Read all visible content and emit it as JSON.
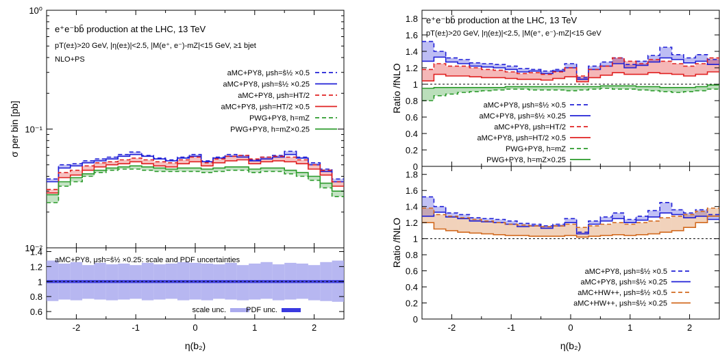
{
  "chart_data": [
    {
      "type": "line",
      "panel": "left-top",
      "title": "e⁺e⁻bb̄ production at the LHC, 13 TeV",
      "cuts": "p_T(e±)>20 GeV, |η(e±)|<2.5, |M(e⁺, e⁻)-m_Z|<15 GeV, ≥1 bjet",
      "subtitle": "NLO+PS",
      "xlabel": "η(b₂)",
      "ylabel": "σ per bin [pb]",
      "xlim": [
        -2.5,
        2.5
      ],
      "ylim": [
        0.01,
        1
      ],
      "yscale": "log",
      "x_ticks": [
        "-2",
        "-1",
        "0",
        "1",
        "2"
      ],
      "y_ticks": [
        "10⁰",
        "10⁻¹",
        "10⁻²"
      ],
      "bin_edges": [
        -2.5,
        -2.3,
        -2.1,
        -1.9,
        -1.7,
        -1.5,
        -1.3,
        -1.1,
        -0.9,
        -0.7,
        -0.5,
        -0.3,
        -0.1,
        0.1,
        0.3,
        0.5,
        0.7,
        0.9,
        1.1,
        1.3,
        1.5,
        1.7,
        1.9,
        2.1,
        2.3,
        2.5
      ],
      "series": [
        {
          "name": "aMC+PY8, μ_sh=ŝ^{1/2} ×0.5",
          "color": "#1f1fd6",
          "dash": "dashed",
          "values": [
            0.038,
            0.05,
            0.051,
            0.054,
            0.056,
            0.058,
            0.061,
            0.064,
            0.06,
            0.057,
            0.055,
            0.058,
            0.061,
            0.054,
            0.058,
            0.061,
            0.06,
            0.055,
            0.058,
            0.06,
            0.065,
            0.058,
            0.052,
            0.046,
            0.038
          ]
        },
        {
          "name": "aMC+PY8, μ_sh=ŝ^{1/2} ×0.25",
          "color": "#1f1fd6",
          "dash": "solid",
          "values": [
            0.036,
            0.047,
            0.049,
            0.052,
            0.054,
            0.056,
            0.059,
            0.061,
            0.059,
            0.056,
            0.054,
            0.057,
            0.059,
            0.053,
            0.057,
            0.059,
            0.058,
            0.054,
            0.056,
            0.058,
            0.061,
            0.057,
            0.05,
            0.044,
            0.036
          ]
        },
        {
          "name": "aMC+PY8, μ_sh=H_T/2",
          "color": "#e02020",
          "dash": "dashed",
          "values": [
            0.031,
            0.043,
            0.045,
            0.049,
            0.052,
            0.053,
            0.055,
            0.057,
            0.055,
            0.053,
            0.052,
            0.055,
            0.058,
            0.052,
            0.056,
            0.059,
            0.06,
            0.056,
            0.058,
            0.059,
            0.058,
            0.055,
            0.05,
            0.045,
            0.036
          ]
        },
        {
          "name": "aMC+PY8, μ_sh=H_T/2 ×0.5",
          "color": "#e02020",
          "dash": "solid",
          "values": [
            0.029,
            0.039,
            0.041,
            0.045,
            0.048,
            0.05,
            0.051,
            0.053,
            0.051,
            0.049,
            0.048,
            0.051,
            0.053,
            0.049,
            0.052,
            0.054,
            0.055,
            0.051,
            0.053,
            0.054,
            0.053,
            0.051,
            0.046,
            0.041,
            0.033
          ]
        },
        {
          "name": "PWG+PY8, h=m_Z",
          "color": "#2a9a2a",
          "dash": "dashed",
          "values": [
            0.024,
            0.033,
            0.036,
            0.04,
            0.043,
            0.045,
            0.046,
            0.046,
            0.045,
            0.044,
            0.044,
            0.044,
            0.044,
            0.043,
            0.044,
            0.045,
            0.045,
            0.043,
            0.044,
            0.044,
            0.042,
            0.04,
            0.037,
            0.032,
            0.027
          ]
        },
        {
          "name": "PWG+PY8, h=m_Z×0.25",
          "color": "#2a9a2a",
          "dash": "solid",
          "values": [
            0.028,
            0.036,
            0.039,
            0.042,
            0.045,
            0.047,
            0.048,
            0.049,
            0.048,
            0.047,
            0.046,
            0.047,
            0.047,
            0.046,
            0.047,
            0.048,
            0.048,
            0.046,
            0.047,
            0.047,
            0.045,
            0.043,
            0.04,
            0.035,
            0.03
          ]
        }
      ]
    },
    {
      "type": "area",
      "panel": "left-bottom",
      "title": "aMC+PY8, μ_sh=ŝ^{1/2} ×0.25: scale and PDF uncertainties",
      "xlabel": "η(b₂)",
      "xlim": [
        -2.5,
        2.5
      ],
      "ylim": [
        0.5,
        1.45
      ],
      "y_ticks": [
        "1.4",
        "1.2",
        "1",
        "0.8",
        "0.6"
      ],
      "x_ticks": [
        "-2",
        "-1",
        "0",
        "1",
        "2"
      ],
      "bands": [
        {
          "name": "scale unc.",
          "color": "#aaaaee",
          "upper": [
            1.28,
            1.24,
            1.26,
            1.22,
            1.25,
            1.23,
            1.24,
            1.22,
            1.25,
            1.23,
            1.24,
            1.26,
            1.25,
            1.24,
            1.23,
            1.25,
            1.22,
            1.24,
            1.26,
            1.23,
            1.25,
            1.24,
            1.22,
            1.26,
            1.28
          ],
          "lower": [
            0.74,
            0.76,
            0.75,
            0.77,
            0.76,
            0.75,
            0.76,
            0.77,
            0.75,
            0.76,
            0.77,
            0.75,
            0.76,
            0.75,
            0.77,
            0.76,
            0.75,
            0.76,
            0.77,
            0.75,
            0.76,
            0.77,
            0.75,
            0.74,
            0.73
          ]
        },
        {
          "name": "PDF unc.",
          "color": "#3a3ae0",
          "upper": [
            1.02,
            1.02,
            1.02,
            1.02,
            1.02,
            1.02,
            1.02,
            1.02,
            1.02,
            1.02,
            1.02,
            1.02,
            1.02,
            1.02,
            1.02,
            1.02,
            1.02,
            1.02,
            1.02,
            1.02,
            1.02,
            1.02,
            1.02,
            1.02,
            1.02
          ],
          "lower": [
            0.98,
            0.98,
            0.98,
            0.98,
            0.98,
            0.98,
            0.98,
            0.98,
            0.98,
            0.98,
            0.98,
            0.98,
            0.98,
            0.98,
            0.98,
            0.98,
            0.98,
            0.98,
            0.98,
            0.98,
            0.98,
            0.98,
            0.98,
            0.98,
            0.98
          ]
        }
      ]
    },
    {
      "type": "line",
      "panel": "right-top",
      "title": "e⁺e⁻bb̄ production at the LHC, 13 TeV",
      "cuts": "p_T(e±)>20 GeV, |η(e±)|<2.5, |M(e⁺, e⁻)-m_Z|<15 GeV",
      "ylabel": "Ratio /fNLO",
      "xlim": [
        -2.5,
        2.5
      ],
      "ylim": [
        0,
        1.9
      ],
      "y_ticks": [
        "1.8",
        "1.6",
        "1.4",
        "1.2",
        "1",
        "0.8",
        "0.6",
        "0.4",
        "0.2",
        "0"
      ],
      "series": [
        {
          "name": "aMC+PY8, μ_sh=ŝ^{1/2} ×0.5",
          "color": "#1f1fd6",
          "dash": "dashed",
          "values": [
            1.52,
            1.4,
            1.32,
            1.3,
            1.26,
            1.25,
            1.24,
            1.22,
            1.19,
            1.18,
            1.16,
            1.18,
            1.25,
            1.08,
            1.22,
            1.27,
            1.32,
            1.24,
            1.28,
            1.35,
            1.45,
            1.36,
            1.32,
            1.36,
            1.3
          ]
        },
        {
          "name": "aMC+PY8, μ_sh=ŝ^{1/2} ×0.25",
          "color": "#1f1fd6",
          "dash": "solid",
          "values": [
            1.28,
            1.33,
            1.27,
            1.25,
            1.22,
            1.21,
            1.2,
            1.18,
            1.15,
            1.16,
            1.13,
            1.16,
            1.2,
            1.06,
            1.18,
            1.22,
            1.25,
            1.2,
            1.23,
            1.27,
            1.32,
            1.3,
            1.26,
            1.28,
            1.24
          ]
        },
        {
          "name": "aMC+PY8, μ_sh=H_T/2",
          "color": "#e02020",
          "dash": "dashed",
          "values": [
            1.18,
            1.25,
            1.22,
            1.22,
            1.2,
            1.18,
            1.17,
            1.15,
            1.13,
            1.14,
            1.12,
            1.15,
            1.2,
            1.1,
            1.18,
            1.22,
            1.32,
            1.28,
            1.25,
            1.3,
            1.28,
            1.25,
            1.22,
            1.25,
            1.32
          ]
        },
        {
          "name": "aMC+PY8, μ_sh=H_T/2 ×0.5",
          "color": "#e02020",
          "dash": "solid",
          "values": [
            1.04,
            1.12,
            1.1,
            1.1,
            1.09,
            1.08,
            1.08,
            1.07,
            1.06,
            1.06,
            1.05,
            1.07,
            1.09,
            1.03,
            1.08,
            1.11,
            1.14,
            1.12,
            1.12,
            1.14,
            1.13,
            1.12,
            1.1,
            1.12,
            1.15
          ]
        },
        {
          "name": "PWG+PY8, h=m_Z",
          "color": "#2a9a2a",
          "dash": "dashed",
          "values": [
            0.8,
            0.86,
            0.88,
            0.9,
            0.91,
            0.92,
            0.93,
            0.94,
            0.94,
            0.93,
            0.93,
            0.93,
            0.92,
            0.93,
            0.94,
            0.95,
            0.94,
            0.94,
            0.93,
            0.92,
            0.91,
            0.9,
            0.91,
            0.92,
            0.94
          ]
        },
        {
          "name": "PWG+PY8, h=m_Z×0.25",
          "color": "#2a9a2a",
          "dash": "solid",
          "values": [
            0.95,
            0.96,
            0.96,
            0.96,
            0.96,
            0.96,
            0.96,
            0.97,
            0.97,
            0.97,
            0.97,
            0.97,
            0.97,
            0.97,
            0.97,
            0.98,
            0.98,
            0.98,
            0.97,
            0.97,
            0.96,
            0.96,
            0.96,
            0.97,
            0.99
          ]
        }
      ]
    },
    {
      "type": "line",
      "panel": "right-bottom",
      "xlabel": "η(b₂)",
      "ylabel": "Ratio /fNLO",
      "xlim": [
        -2.5,
        2.5
      ],
      "ylim": [
        0,
        1.9
      ],
      "y_ticks": [
        "1.8",
        "1.6",
        "1.4",
        "1.2",
        "1",
        "0.8",
        "0.6",
        "0.4",
        "0.2",
        "0"
      ],
      "x_ticks": [
        "-2",
        "-1",
        "0",
        "1",
        "2"
      ],
      "series": [
        {
          "name": "aMC+PY8, μ_sh=ŝ^{1/2} ×0.5",
          "color": "#1f1fd6",
          "dash": "dashed",
          "values": [
            1.52,
            1.4,
            1.32,
            1.3,
            1.26,
            1.25,
            1.24,
            1.22,
            1.19,
            1.18,
            1.16,
            1.18,
            1.25,
            1.08,
            1.22,
            1.27,
            1.32,
            1.24,
            1.28,
            1.35,
            1.45,
            1.36,
            1.32,
            1.36,
            1.3
          ]
        },
        {
          "name": "aMC+PY8, μ_sh=ŝ^{1/2} ×0.25",
          "color": "#1f1fd6",
          "dash": "solid",
          "values": [
            1.28,
            1.33,
            1.27,
            1.25,
            1.22,
            1.21,
            1.2,
            1.18,
            1.15,
            1.16,
            1.13,
            1.16,
            1.2,
            1.06,
            1.18,
            1.22,
            1.25,
            1.2,
            1.23,
            1.27,
            1.32,
            1.3,
            1.26,
            1.28,
            1.24
          ]
        },
        {
          "name": "aMC+HW++, μ_sh=ŝ^{1/2} ×0.5",
          "color": "#d2691e",
          "dash": "dashed",
          "values": [
            1.38,
            1.3,
            1.28,
            1.26,
            1.24,
            1.22,
            1.2,
            1.18,
            1.17,
            1.16,
            1.15,
            1.16,
            1.18,
            1.14,
            1.16,
            1.18,
            1.2,
            1.18,
            1.2,
            1.22,
            1.26,
            1.28,
            1.3,
            1.34,
            1.38
          ]
        },
        {
          "name": "aMC+HW++, μ_sh=ŝ^{1/2} ×0.25",
          "color": "#d2691e",
          "dash": "solid",
          "values": [
            1.2,
            1.12,
            1.1,
            1.08,
            1.07,
            1.06,
            1.05,
            1.04,
            1.04,
            1.03,
            1.03,
            1.03,
            1.04,
            1.02,
            1.03,
            1.04,
            1.05,
            1.04,
            1.05,
            1.06,
            1.08,
            1.1,
            1.14,
            1.2,
            1.28
          ]
        }
      ]
    }
  ],
  "legend_extra": {
    "left_top": [
      "aMC+PY8, μ_sh=ŝ^{1/2} ×0.5",
      "aMC+PY8, μ_sh=ŝ^{1/2} ×0.25",
      "aMC+PY8, μ_sh=H_T/2",
      "aMC+PY8, μ_sh=H_T/2 ×0.5",
      "PWG+PY8, h=m_Z",
      "PWG+PY8, h=m_Z×0.25"
    ]
  }
}
